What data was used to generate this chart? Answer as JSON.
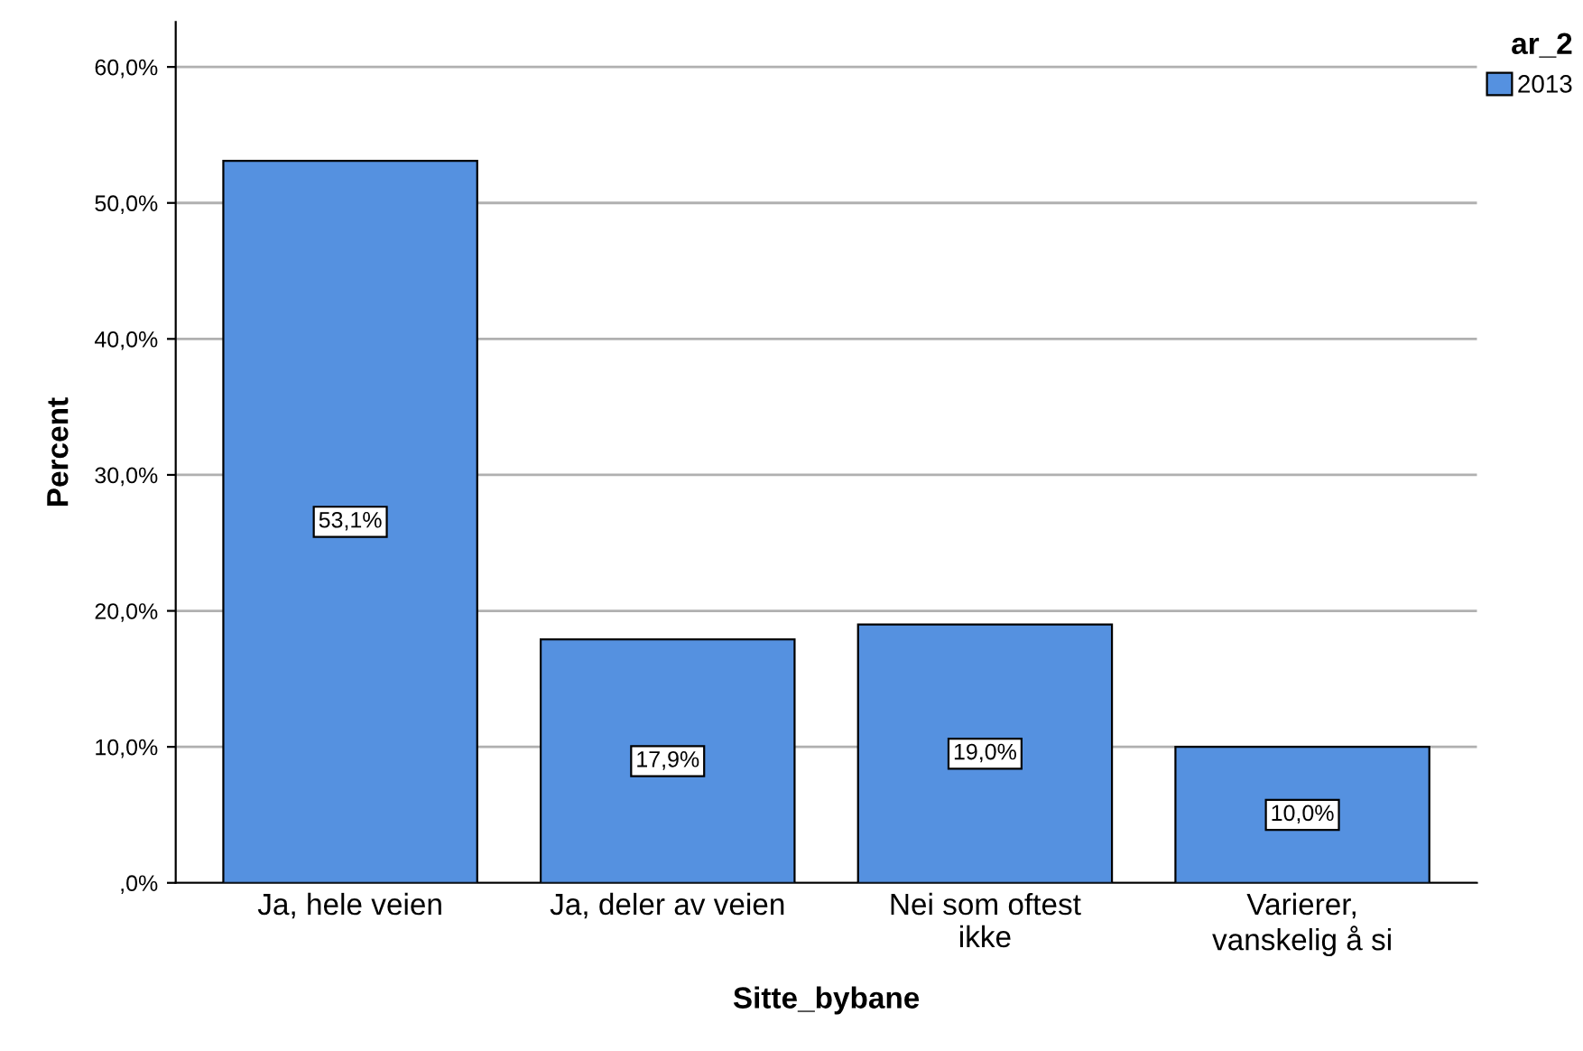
{
  "chart_data": {
    "type": "bar",
    "xlabel": "Sitte_bybane",
    "ylabel": "Percent",
    "legend_title": "ar_2",
    "categories": [
      "Ja, hele veien",
      "Ja, deler av veien",
      "Nei som oftest\nikke",
      "Varierer,\nvanskelig å si"
    ],
    "series": [
      {
        "name": "2013",
        "color": "#5591e0",
        "values": [
          53.1,
          17.9,
          19.0,
          10.0
        ],
        "value_labels": [
          "53,1%",
          "17,9%",
          "19,0%",
          "10,0%"
        ]
      }
    ],
    "ylim": [
      0,
      63.3
    ],
    "yticks": [
      {
        "value": 0,
        "label": ",0%"
      },
      {
        "value": 10,
        "label": "10,0%"
      },
      {
        "value": 20,
        "label": "20,0%"
      },
      {
        "value": 30,
        "label": "30,0%"
      },
      {
        "value": 40,
        "label": "40,0%"
      },
      {
        "value": 50,
        "label": "50,0%"
      },
      {
        "value": 60,
        "label": "60,0%"
      }
    ],
    "grid": "y",
    "legend": "top right"
  }
}
